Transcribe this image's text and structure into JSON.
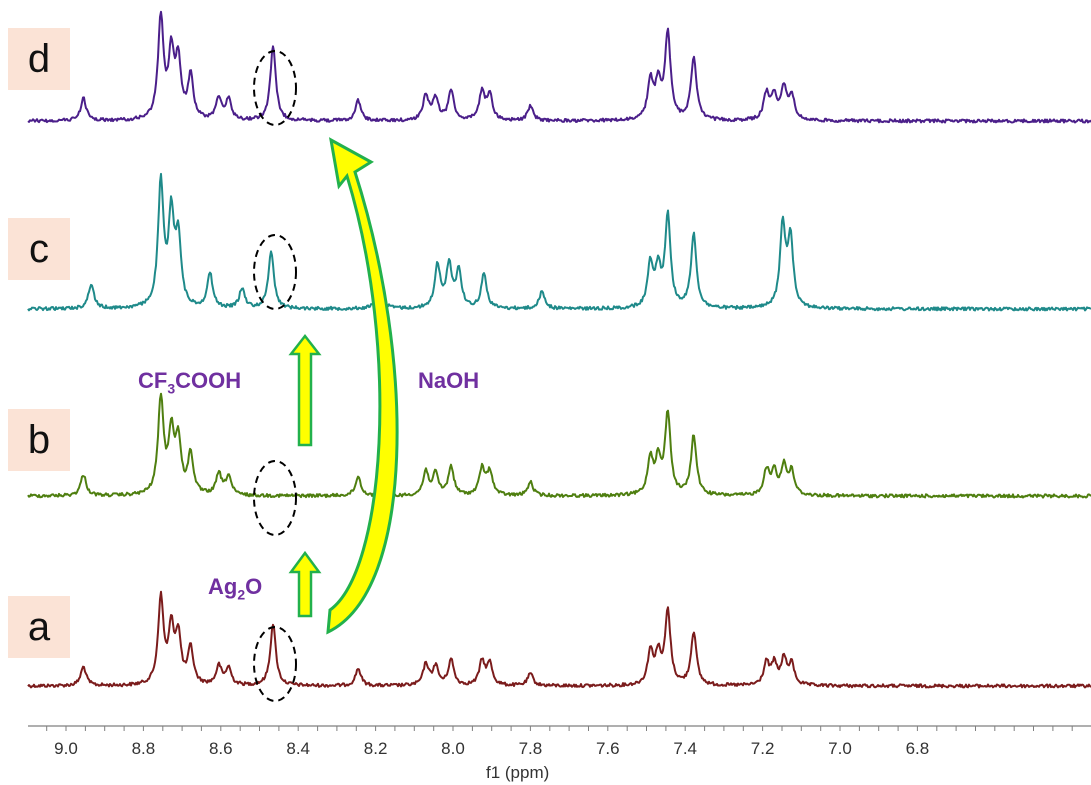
{
  "chart_data": {
    "type": "line",
    "title": "",
    "xlabel": "f1 (ppm)",
    "ylabel": "",
    "x_reversed": true,
    "xlim": [
      9.1,
      6.72
    ],
    "x_ticks": [
      9.0,
      8.8,
      8.6,
      8.4,
      8.2,
      8.0,
      7.8,
      7.6,
      7.4,
      7.2,
      7.0,
      6.8
    ],
    "x_tick_labels": [
      "9.0",
      "8.8",
      "8.6",
      "8.4",
      "8.2",
      "8.0",
      "7.8",
      "7.6",
      "7.4",
      "7.2",
      "7.0",
      "6.8"
    ],
    "series": [
      {
        "name": "a",
        "color": "#7b1c1c",
        "peaks": [
          [
            8.955,
            0.22
          ],
          [
            8.755,
            1.0
          ],
          [
            8.728,
            0.62
          ],
          [
            8.71,
            0.55
          ],
          [
            8.678,
            0.42
          ],
          [
            8.605,
            0.22
          ],
          [
            8.58,
            0.2
          ],
          [
            8.465,
            0.72
          ],
          [
            8.245,
            0.2
          ],
          [
            8.07,
            0.25
          ],
          [
            8.045,
            0.22
          ],
          [
            8.005,
            0.3
          ],
          [
            7.925,
            0.28
          ],
          [
            7.905,
            0.25
          ],
          [
            7.8,
            0.14
          ],
          [
            7.49,
            0.38
          ],
          [
            7.47,
            0.34
          ],
          [
            7.445,
            0.85
          ],
          [
            7.378,
            0.62
          ],
          [
            7.19,
            0.26
          ],
          [
            7.17,
            0.24
          ],
          [
            7.145,
            0.3
          ],
          [
            7.125,
            0.24
          ]
        ]
      },
      {
        "name": "b",
        "color": "#4f7f10",
        "peaks": [
          [
            8.955,
            0.22
          ],
          [
            8.755,
            1.0
          ],
          [
            8.728,
            0.62
          ],
          [
            8.71,
            0.55
          ],
          [
            8.678,
            0.42
          ],
          [
            8.605,
            0.22
          ],
          [
            8.58,
            0.2
          ],
          [
            8.245,
            0.2
          ],
          [
            8.07,
            0.25
          ],
          [
            8.045,
            0.22
          ],
          [
            8.005,
            0.3
          ],
          [
            7.925,
            0.28
          ],
          [
            7.905,
            0.25
          ],
          [
            7.8,
            0.14
          ],
          [
            7.49,
            0.38
          ],
          [
            7.47,
            0.34
          ],
          [
            7.445,
            0.85
          ],
          [
            7.378,
            0.62
          ],
          [
            7.19,
            0.26
          ],
          [
            7.17,
            0.24
          ],
          [
            7.145,
            0.3
          ],
          [
            7.125,
            0.24
          ]
        ]
      },
      {
        "name": "c",
        "color": "#1f8a8a",
        "peaks": [
          [
            8.935,
            0.2
          ],
          [
            8.755,
            1.0
          ],
          [
            8.728,
            0.72
          ],
          [
            8.71,
            0.55
          ],
          [
            8.628,
            0.28
          ],
          [
            8.545,
            0.16
          ],
          [
            8.47,
            0.47
          ],
          [
            8.19,
            0.2
          ],
          [
            8.04,
            0.35
          ],
          [
            8.01,
            0.35
          ],
          [
            7.985,
            0.3
          ],
          [
            7.92,
            0.28
          ],
          [
            7.77,
            0.14
          ],
          [
            7.49,
            0.35
          ],
          [
            7.47,
            0.3
          ],
          [
            7.445,
            0.74
          ],
          [
            7.378,
            0.6
          ],
          [
            7.148,
            0.66
          ],
          [
            7.128,
            0.56
          ]
        ]
      },
      {
        "name": "d",
        "color": "#4b1f8a",
        "peaks": [
          [
            8.955,
            0.22
          ],
          [
            8.755,
            1.0
          ],
          [
            8.728,
            0.62
          ],
          [
            8.71,
            0.55
          ],
          [
            8.678,
            0.42
          ],
          [
            8.605,
            0.22
          ],
          [
            8.58,
            0.2
          ],
          [
            8.465,
            0.72
          ],
          [
            8.245,
            0.2
          ],
          [
            8.07,
            0.25
          ],
          [
            8.045,
            0.22
          ],
          [
            8.005,
            0.3
          ],
          [
            7.925,
            0.28
          ],
          [
            7.905,
            0.25
          ],
          [
            7.8,
            0.14
          ],
          [
            7.49,
            0.38
          ],
          [
            7.47,
            0.34
          ],
          [
            7.445,
            0.85
          ],
          [
            7.378,
            0.62
          ],
          [
            7.19,
            0.26
          ],
          [
            7.17,
            0.24
          ],
          [
            7.145,
            0.3
          ],
          [
            7.125,
            0.24
          ]
        ]
      }
    ],
    "highlight_ppm": 8.465,
    "annotations": [
      {
        "html": "Ag<sub>2</sub>O"
      },
      {
        "html": "CF<sub>3</sub>COOH"
      },
      {
        "text": "NaOH"
      }
    ]
  },
  "labels": {
    "a": "a",
    "b": "b",
    "c": "c",
    "d": "d"
  },
  "reagents": {
    "ag2o": {
      "base": "Ag",
      "sub": "2",
      "tail": "O"
    },
    "cf3cooh": {
      "base": "CF",
      "sub": "3",
      "tail": "COOH"
    },
    "naoh": "NaOH"
  },
  "colors": {
    "label_bg": "#fbe3d6",
    "reagent_text": "#7030a0",
    "arrow_fill": "#ffff00",
    "arrow_stroke": "#22b14c"
  }
}
